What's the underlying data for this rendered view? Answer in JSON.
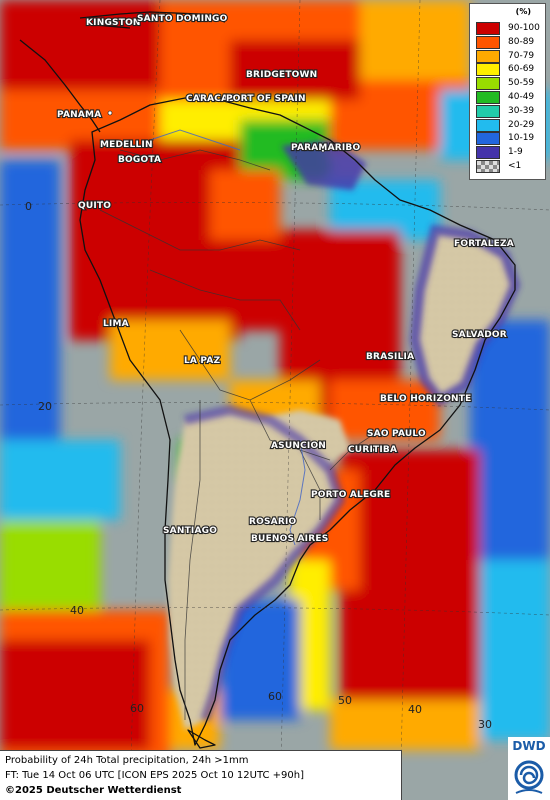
{
  "legend": {
    "title": "(%)",
    "classes": [
      {
        "label": "90-100",
        "color": "#cc0000"
      },
      {
        "label": "80-89",
        "color": "#ff5500"
      },
      {
        "label": "70-79",
        "color": "#ffaa00"
      },
      {
        "label": "60-69",
        "color": "#ffee00"
      },
      {
        "label": "50-59",
        "color": "#99dd00"
      },
      {
        "label": "40-49",
        "color": "#22bb22"
      },
      {
        "label": "30-39",
        "color": "#22ccaa"
      },
      {
        "label": "20-29",
        "color": "#22bbee"
      },
      {
        "label": "10-19",
        "color": "#2266dd"
      },
      {
        "label": "1-9",
        "color": "#4433aa"
      },
      {
        "label": "<1",
        "color": "#aaaaaa"
      }
    ]
  },
  "cities": [
    "KINGSTON",
    "SANTO DOMINGO",
    "BRIDGETOWN",
    "CARACAS",
    "PORT OF SPAIN",
    "PANAMA",
    "MEDELLIN",
    "BOGOTA",
    "PARAMARIBO",
    "QUITO",
    "FORTALEZA",
    "LIMA",
    "SALVADOR",
    "LA PAZ",
    "BRASILIA",
    "BELO HORIZONTE",
    "SAO PAULO",
    "ASUNCION",
    "CURITIBA",
    "PORTO ALEGRE",
    "SANTIAGO",
    "ROSARIO",
    "BUENOS AIRES"
  ],
  "grid_labels": [
    "0",
    "20",
    "40",
    "60",
    "50",
    "40",
    "30",
    "60"
  ],
  "caption": {
    "line1": "Probability of 24h Total precipitation, 24h >1mm",
    "line2": "FT: Tue 14 Oct 06 UTC [ICON EPS 2025 Oct 10 12UTC +90h]",
    "line3": "©2025 Deutscher Wetterdienst"
  },
  "logo": {
    "text": "DWD"
  },
  "colors": {
    "ocean": "#9aa6a6",
    "land": "#d9ccb0"
  }
}
